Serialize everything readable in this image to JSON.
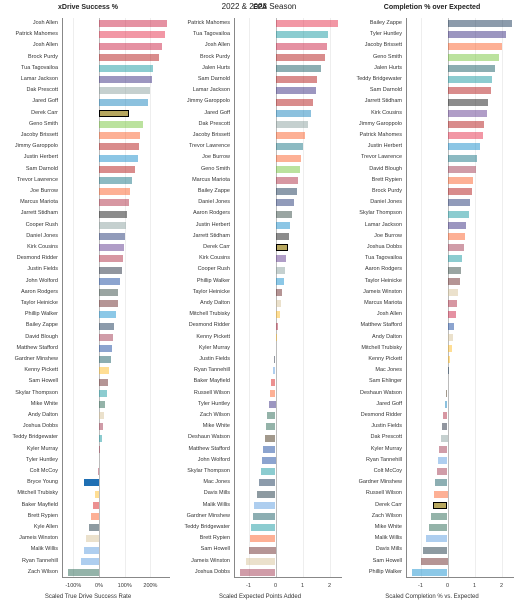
{
  "title": "2022 & 2023 Season",
  "colors": {
    "background": "#ffffff",
    "grid": "#eeeeee",
    "axis": "#888888",
    "zero": "#bbbbbb",
    "highlight_fill": "#b7a75f",
    "highlight_stroke": "#000000",
    "blue_highlight": "#1f6fb3",
    "name_fontsize": 5.5,
    "title_fontsize": 8,
    "panel_title_fontsize": 7
  },
  "team_colors": {
    "Josh Allen": "#c60c30",
    "Patrick Mahomes": "#e31837",
    "Brock Purdy": "#aa0000",
    "Tua Tagovailoa": "#008e97",
    "Lamar Jackson": "#241773",
    "Dak Prescott": "#7f9695",
    "Jared Goff": "#0076b6",
    "Derek Carr": "#000000",
    "Geno Smith": "#69be28",
    "Jacoby Brissett": "#fb4f14",
    "Jimmy Garoppolo": "#aa0000",
    "Justin Herbert": "#0080c6",
    "Sam Darnold": "#aa0000",
    "Trevor Lawrence": "#006778",
    "Joe Burrow": "#fb4f14",
    "Marcus Mariota": "#a71930",
    "Jarrett Stidham": "#000000",
    "Cooper Rush": "#7f9695",
    "Daniel Jones": "#0b2265",
    "Kirk Cousins": "#4f2683",
    "Desmond Ridder": "#a71930",
    "Justin Fields": "#0b162a",
    "John Wolford": "#003594",
    "Aaron Rodgers": "#203731",
    "Taylor Heinicke": "#5a1414",
    "Phillip Walker": "#0085ca",
    "Bailey Zappe": "#002244",
    "David Blough": "#97233f",
    "Matthew Stafford": "#003594",
    "Gardner Minshew": "#004c54",
    "Kenny Pickett": "#ffb612",
    "Sam Howell": "#5a1414",
    "Skylar Thompson": "#008e97",
    "Mike White": "#125740",
    "Andy Dalton": "#d3bc8d",
    "Joshua Dobbs": "#97233f",
    "Teddy Bridgewater": "#008e97",
    "Kyler Murray": "#97233f",
    "Tyler Huntley": "#241773",
    "Colt McCoy": "#97233f",
    "Bryce Young": "#0085ca",
    "Mitchell Trubisky": "#ffb612",
    "Baker Mayfield": "#d50a0a",
    "Brett Rypien": "#fb4f14",
    "Kyle Allen": "#03202f",
    "Jameis Winston": "#d3bc8d",
    "Malik Willis": "#4b92db",
    "Ryan Tannehill": "#4b92db",
    "Zach Wilson": "#125740",
    "Jalen Hurts": "#004c54",
    "Mac Jones": "#002244",
    "Davis Mills": "#03202f",
    "Deshaun Watson": "#311d00",
    "Sam Ehlinger": "#002c5f",
    "Russell Wilson": "#fb4f14"
  },
  "panels": [
    {
      "id": "xdrive",
      "title": "xDrive Success %",
      "xlabel": "Scaled True Drive Success Rate",
      "domain": [
        -140,
        280
      ],
      "ticks": [
        {
          "v": -100,
          "l": "-100%"
        },
        {
          "v": 0,
          "l": "0%"
        },
        {
          "v": 100,
          "l": "100%"
        },
        {
          "v": 200,
          "l": "200%"
        }
      ],
      "highlight": {
        "name": "Derek Carr",
        "fill": "#b7a75f"
      },
      "blue_highlight": {
        "name": "Bryce Young",
        "value": -60
      },
      "data": [
        {
          "n": "Josh Allen",
          "v": 265
        },
        {
          "n": "Patrick Mahomes",
          "v": 255
        },
        {
          "n": "Josh Allen",
          "v": 245
        },
        {
          "n": "Brock Purdy",
          "v": 235
        },
        {
          "n": "Tua Tagovailoa",
          "v": 210
        },
        {
          "n": "Lamar Jackson",
          "v": 205
        },
        {
          "n": "Dak Prescott",
          "v": 200
        },
        {
          "n": "Jared Goff",
          "v": 190
        },
        {
          "n": "Derek Carr",
          "v": 115
        },
        {
          "n": "Geno Smith",
          "v": 170
        },
        {
          "n": "Jacoby Brissett",
          "v": 160
        },
        {
          "n": "Jimmy Garoppolo",
          "v": 155
        },
        {
          "n": "Justin Herbert",
          "v": 150
        },
        {
          "n": "Sam Darnold",
          "v": 140
        },
        {
          "n": "Trevor Lawrence",
          "v": 130
        },
        {
          "n": "Joe Burrow",
          "v": 120
        },
        {
          "n": "Marcus Mariota",
          "v": 115
        },
        {
          "n": "Jarrett Stidham",
          "v": 110
        },
        {
          "n": "Cooper Rush",
          "v": 105
        },
        {
          "n": "Daniel Jones",
          "v": 100
        },
        {
          "n": "Kirk Cousins",
          "v": 98
        },
        {
          "n": "Desmond Ridder",
          "v": 92
        },
        {
          "n": "Justin Fields",
          "v": 90
        },
        {
          "n": "John Wolford",
          "v": 80
        },
        {
          "n": "Aaron Rodgers",
          "v": 75
        },
        {
          "n": "Taylor Heinicke",
          "v": 72
        },
        {
          "n": "Phillip Walker",
          "v": 65
        },
        {
          "n": "Bailey Zappe",
          "v": 60
        },
        {
          "n": "David Blough",
          "v": 55
        },
        {
          "n": "Matthew Stafford",
          "v": 50
        },
        {
          "n": "Gardner Minshew",
          "v": 45
        },
        {
          "n": "Kenny Pickett",
          "v": 40
        },
        {
          "n": "Sam Howell",
          "v": 35
        },
        {
          "n": "Skylar Thompson",
          "v": 30
        },
        {
          "n": "Mike White",
          "v": 25
        },
        {
          "n": "Andy Dalton",
          "v": 20
        },
        {
          "n": "Joshua Dobbs",
          "v": 15
        },
        {
          "n": "Teddy Bridgewater",
          "v": 10
        },
        {
          "n": "Kyler Murray",
          "v": 5
        },
        {
          "n": "Tyler Huntley",
          "v": 0
        },
        {
          "n": "Colt McCoy",
          "v": -5
        },
        {
          "n": "Bryce Young",
          "v": -60
        },
        {
          "n": "Mitchell Trubisky",
          "v": -15
        },
        {
          "n": "Baker Mayfield",
          "v": -25
        },
        {
          "n": "Brett Rypien",
          "v": -30
        },
        {
          "n": "Kyle Allen",
          "v": -40
        },
        {
          "n": "Jameis Winston",
          "v": -50
        },
        {
          "n": "Malik Willis",
          "v": -60
        },
        {
          "n": "Ryan Tannehill",
          "v": -70
        },
        {
          "n": "Zach Wilson",
          "v": -120
        }
      ]
    },
    {
      "id": "epa",
      "title": "EPA",
      "xlabel": "Scaled Expected Points Added",
      "domain": [
        -1.5,
        2.5
      ],
      "ticks": [
        {
          "v": -1,
          "l": "-1"
        },
        {
          "v": 0,
          "l": "0"
        },
        {
          "v": 1,
          "l": "1"
        },
        {
          "v": 2,
          "l": "2"
        }
      ],
      "highlight": {
        "name": "Derek Carr",
        "fill": "#b7a75f"
      },
      "data": [
        {
          "n": "Patrick Mahomes",
          "v": 2.3
        },
        {
          "n": "Tua Tagovailoa",
          "v": 1.95
        },
        {
          "n": "Josh Allen",
          "v": 1.9
        },
        {
          "n": "Brock Purdy",
          "v": 1.85
        },
        {
          "n": "Jalen Hurts",
          "v": 1.7
        },
        {
          "n": "Sam Darnold",
          "v": 1.55
        },
        {
          "n": "Lamar Jackson",
          "v": 1.5
        },
        {
          "n": "Jimmy Garoppolo",
          "v": 1.4
        },
        {
          "n": "Jared Goff",
          "v": 1.3
        },
        {
          "n": "Dak Prescott",
          "v": 1.2
        },
        {
          "n": "Jacoby Brissett",
          "v": 1.1
        },
        {
          "n": "Trevor Lawrence",
          "v": 1.0
        },
        {
          "n": "Joe Burrow",
          "v": 0.95
        },
        {
          "n": "Geno Smith",
          "v": 0.9
        },
        {
          "n": "Marcus Mariota",
          "v": 0.85
        },
        {
          "n": "Bailey Zappe",
          "v": 0.8
        },
        {
          "n": "Daniel Jones",
          "v": 0.7
        },
        {
          "n": "Aaron Rodgers",
          "v": 0.6
        },
        {
          "n": "Justin Herbert",
          "v": 0.55
        },
        {
          "n": "Jarrett Stidham",
          "v": 0.5
        },
        {
          "n": "Derek Carr",
          "v": 0.45
        },
        {
          "n": "Kirk Cousins",
          "v": 0.4
        },
        {
          "n": "Cooper Rush",
          "v": 0.35
        },
        {
          "n": "Phillip Walker",
          "v": 0.3
        },
        {
          "n": "Taylor Heinicke",
          "v": 0.25
        },
        {
          "n": "Andy Dalton",
          "v": 0.2
        },
        {
          "n": "Mitchell Trubisky",
          "v": 0.15
        },
        {
          "n": "Desmond Ridder",
          "v": 0.1
        },
        {
          "n": "Kenny Pickett",
          "v": 0.05
        },
        {
          "n": "Kyler Murray",
          "v": 0.0
        },
        {
          "n": "Justin Fields",
          "v": -0.05
        },
        {
          "n": "Ryan Tannehill",
          "v": -0.1
        },
        {
          "n": "Baker Mayfield",
          "v": -0.15
        },
        {
          "n": "Russell Wilson",
          "v": -0.2
        },
        {
          "n": "Tyler Huntley",
          "v": -0.25
        },
        {
          "n": "Zach Wilson",
          "v": -0.3
        },
        {
          "n": "Mike White",
          "v": -0.35
        },
        {
          "n": "Deshaun Watson",
          "v": -0.4
        },
        {
          "n": "Matthew Stafford",
          "v": -0.45
        },
        {
          "n": "John Wolford",
          "v": -0.5
        },
        {
          "n": "Skylar Thompson",
          "v": -0.55
        },
        {
          "n": "Mac Jones",
          "v": -0.6
        },
        {
          "n": "Davis Mills",
          "v": -0.7
        },
        {
          "n": "Malik Willis",
          "v": -0.8
        },
        {
          "n": "Gardner Minshew",
          "v": -0.85
        },
        {
          "n": "Teddy Bridgewater",
          "v": -0.9
        },
        {
          "n": "Brett Rypien",
          "v": -0.95
        },
        {
          "n": "Sam Howell",
          "v": -1.0
        },
        {
          "n": "Jameis Winston",
          "v": -1.1
        },
        {
          "n": "Joshua Dobbs",
          "v": -1.3
        }
      ]
    },
    {
      "id": "cpoe",
      "title": "Completion % over Expected",
      "xlabel": "Scaled Completion % vs. Expected",
      "domain": [
        -1.5,
        2.5
      ],
      "ticks": [
        {
          "v": -1,
          "l": "-1"
        },
        {
          "v": 0,
          "l": "0"
        },
        {
          "v": 1,
          "l": "1"
        },
        {
          "v": 2,
          "l": "2"
        }
      ],
      "highlight": {
        "name": "Derek Carr",
        "fill": "#b7a75f"
      },
      "data": [
        {
          "n": "Bailey Zappe",
          "v": 2.4
        },
        {
          "n": "Tyler Huntley",
          "v": 2.15
        },
        {
          "n": "Jacoby Brissett",
          "v": 2.0
        },
        {
          "n": "Geno Smith",
          "v": 1.9
        },
        {
          "n": "Jalen Hurts",
          "v": 1.75
        },
        {
          "n": "Teddy Bridgewater",
          "v": 1.65
        },
        {
          "n": "Sam Darnold",
          "v": 1.6
        },
        {
          "n": "Jarrett Stidham",
          "v": 1.5
        },
        {
          "n": "Kirk Cousins",
          "v": 1.45
        },
        {
          "n": "Jimmy Garoppolo",
          "v": 1.35
        },
        {
          "n": "Patrick Mahomes",
          "v": 1.3
        },
        {
          "n": "Justin Herbert",
          "v": 1.2
        },
        {
          "n": "Trevor Lawrence",
          "v": 1.1
        },
        {
          "n": "David Blough",
          "v": 1.05
        },
        {
          "n": "Brett Rypien",
          "v": 0.95
        },
        {
          "n": "Brock Purdy",
          "v": 0.9
        },
        {
          "n": "Daniel Jones",
          "v": 0.85
        },
        {
          "n": "Skylar Thompson",
          "v": 0.8
        },
        {
          "n": "Lamar Jackson",
          "v": 0.7
        },
        {
          "n": "Joe Burrow",
          "v": 0.65
        },
        {
          "n": "Joshua Dobbs",
          "v": 0.6
        },
        {
          "n": "Tua Tagovailoa",
          "v": 0.55
        },
        {
          "n": "Aaron Rodgers",
          "v": 0.5
        },
        {
          "n": "Taylor Heinicke",
          "v": 0.45
        },
        {
          "n": "Jameis Winston",
          "v": 0.4
        },
        {
          "n": "Marcus Mariota",
          "v": 0.35
        },
        {
          "n": "Josh Allen",
          "v": 0.3
        },
        {
          "n": "Matthew Stafford",
          "v": 0.25
        },
        {
          "n": "Andy Dalton",
          "v": 0.2
        },
        {
          "n": "Mitchell Trubisky",
          "v": 0.15
        },
        {
          "n": "Kenny Pickett",
          "v": 0.1
        },
        {
          "n": "Mac Jones",
          "v": 0.05
        },
        {
          "n": "Sam Ehlinger",
          "v": 0.0
        },
        {
          "n": "Deshaun Watson",
          "v": -0.05
        },
        {
          "n": "Jared Goff",
          "v": -0.1
        },
        {
          "n": "Desmond Ridder",
          "v": -0.15
        },
        {
          "n": "Justin Fields",
          "v": -0.2
        },
        {
          "n": "Dak Prescott",
          "v": -0.25
        },
        {
          "n": "Kyler Murray",
          "v": -0.3
        },
        {
          "n": "Ryan Tannehill",
          "v": -0.35
        },
        {
          "n": "Colt McCoy",
          "v": -0.4
        },
        {
          "n": "Gardner Minshew",
          "v": -0.45
        },
        {
          "n": "Russell Wilson",
          "v": -0.5
        },
        {
          "n": "Derek Carr",
          "v": -0.55
        },
        {
          "n": "Zach Wilson",
          "v": -0.6
        },
        {
          "n": "Mike White",
          "v": -0.7
        },
        {
          "n": "Malik Willis",
          "v": -0.8
        },
        {
          "n": "Davis Mills",
          "v": -0.9
        },
        {
          "n": "Sam Howell",
          "v": -1.0
        },
        {
          "n": "Phillip Walker",
          "v": -1.3
        }
      ]
    }
  ]
}
